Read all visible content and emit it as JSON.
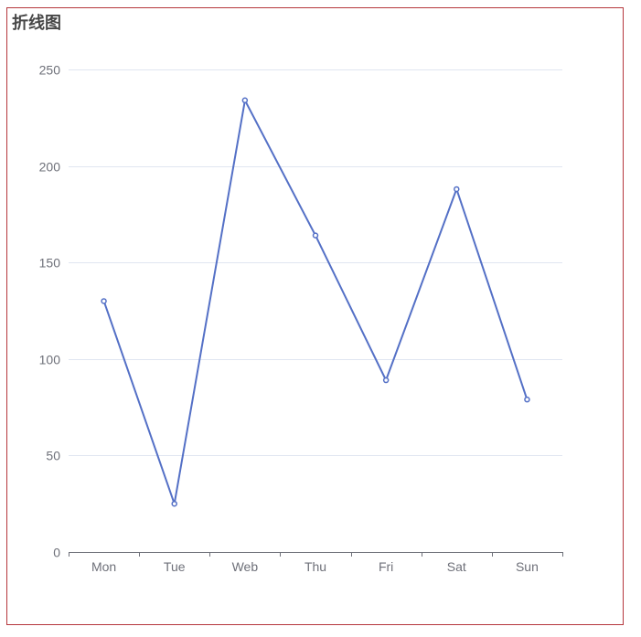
{
  "chart_data": {
    "type": "line",
    "title": "折线图",
    "categories": [
      "Mon",
      "Tue",
      "Web",
      "Thu",
      "Fri",
      "Sat",
      "Sun"
    ],
    "series": [
      {
        "values": [
          130,
          25,
          234,
          164,
          89,
          188,
          79
        ]
      }
    ],
    "ylim": [
      0,
      250
    ],
    "yticks": [
      0,
      50,
      100,
      150,
      200,
      250
    ],
    "grid": true,
    "legend": "none"
  },
  "colors": {
    "line": "#5470c6",
    "grid": "#e0e6f1",
    "axis": "#6e7079",
    "border": "#b5373c",
    "title": "#464646"
  }
}
